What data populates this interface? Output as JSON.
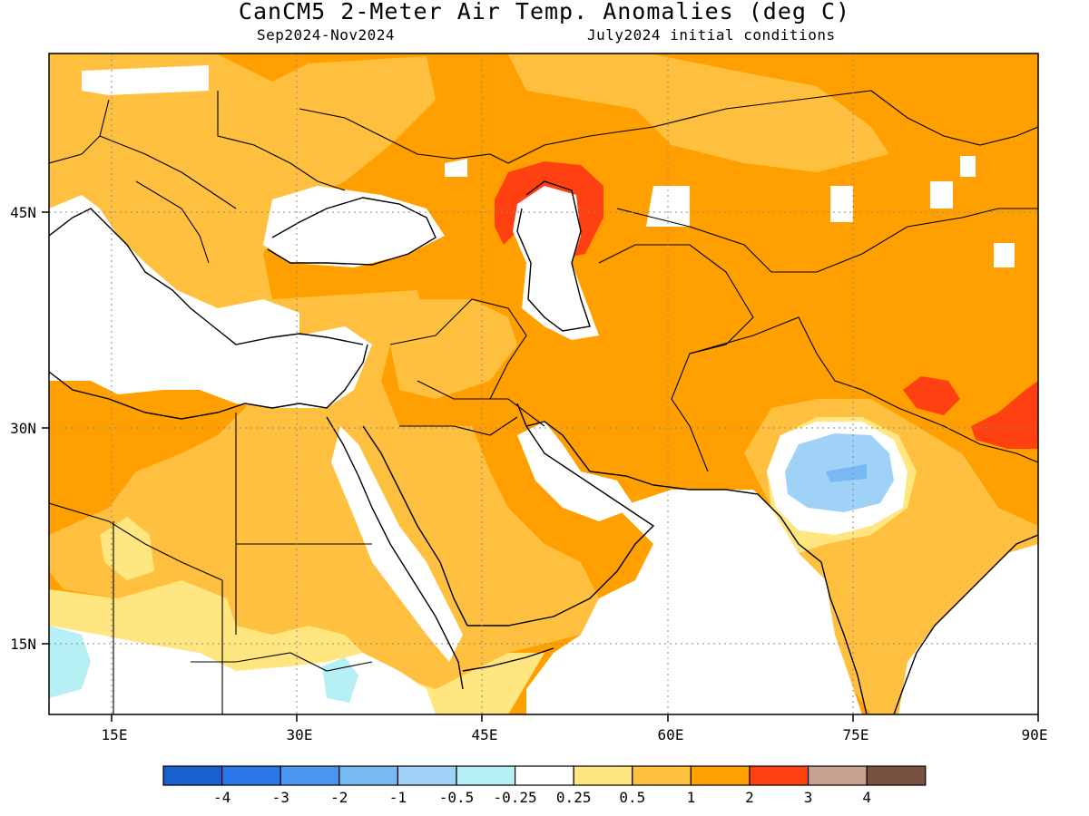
{
  "title": "CanCM5 2-Meter Air Temp. Anomalies (deg C)",
  "season": "Sep2024-Nov2024",
  "initial_conditions": "July2024 initial conditions",
  "lat_labels": [
    "45N",
    "30N",
    "15N"
  ],
  "lon_labels": [
    "15E",
    "30E",
    "45E",
    "60E",
    "75E",
    "90E"
  ],
  "colorbar": {
    "colors": [
      "#1a5fd0",
      "#2876e8",
      "#4a96f0",
      "#78b8f5",
      "#a0d2f8",
      "#b6f0f5",
      "#ffffff",
      "#ffe680",
      "#ffc040",
      "#ffa000",
      "#ff4010",
      "#c8a090",
      "#785040"
    ],
    "labels": [
      "-4",
      "-3",
      "-2",
      "-1",
      "-0.5",
      "-0.25",
      "0.25",
      "0.5",
      "1",
      "2",
      "3",
      "4"
    ]
  },
  "colors": {
    "ocean": "#ffffff",
    "anomaly_0_5_to_1": "#ffc040",
    "anomaly_1_to_2": "#ffa000",
    "anomaly_2_to_3": "#ff4010",
    "anomaly_neg": "#a0d2f8"
  }
}
